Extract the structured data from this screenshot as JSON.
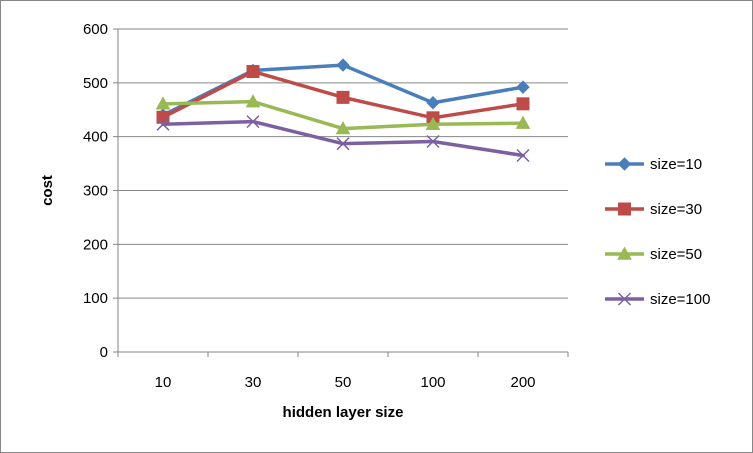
{
  "chart_data": {
    "type": "line",
    "title": "",
    "xlabel": "hidden layer size",
    "ylabel": "cost",
    "categories": [
      "10",
      "30",
      "50",
      "100",
      "200"
    ],
    "ylim": [
      0,
      600
    ],
    "yticks": [
      0,
      100,
      200,
      300,
      400,
      500,
      600
    ],
    "grid": true,
    "legend": "right",
    "series": [
      {
        "name": "size=10",
        "values": [
          440,
          523,
          533,
          463,
          492
        ],
        "color": "#4a7ebb",
        "marker": "diamond"
      },
      {
        "name": "size=30",
        "values": [
          436,
          521,
          473,
          435,
          461
        ],
        "color": "#be4b48",
        "marker": "square"
      },
      {
        "name": "size=50",
        "values": [
          461,
          465,
          415,
          423,
          425
        ],
        "color": "#98b954",
        "marker": "triangle"
      },
      {
        "name": "size=100",
        "values": [
          423,
          428,
          387,
          391,
          365
        ],
        "color": "#7d60a0",
        "marker": "x"
      }
    ]
  }
}
